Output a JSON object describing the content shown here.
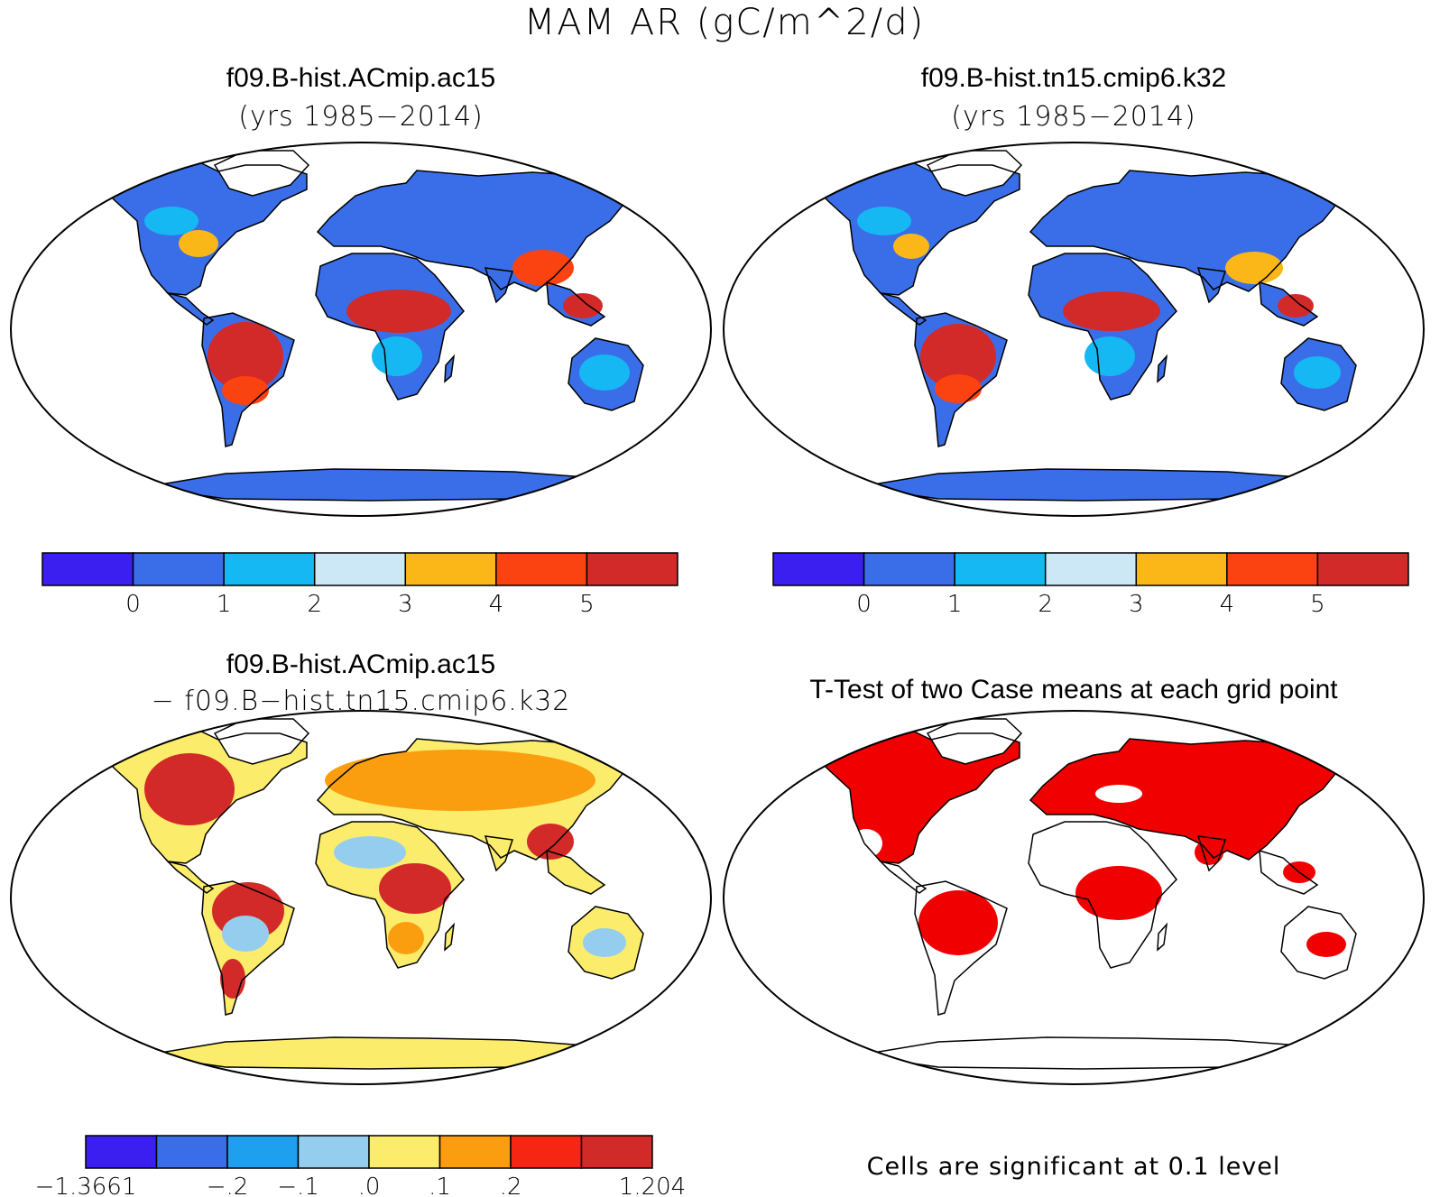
{
  "figure": {
    "title": "MAM AR (gC/m^2/d)"
  },
  "panels": [
    {
      "title": "f09.B-hist.ACmip.ac15",
      "subtitle": "(yrs 1985−2014)"
    },
    {
      "title": "f09.B-hist.tn15.cmip6.k32",
      "subtitle": "(yrs 1985−2014)"
    },
    {
      "title": "f09.B-hist.ACmip.ac15",
      "subtitle": "− f09.B−hist.tn15.cmip6.k32"
    },
    {
      "title": "T-Test of two Case means at each grid point",
      "subtitle": ""
    }
  ],
  "colorbars": {
    "absolute": {
      "colors": [
        "#3a1ff0",
        "#3a6ee8",
        "#15b8f2",
        "#cce8f7",
        "#fbb718",
        "#fb4211",
        "#d22a28"
      ],
      "labels": [
        "0",
        "1",
        "2",
        "3",
        "4",
        "5"
      ]
    },
    "difference": {
      "colors": [
        "#3a1ff0",
        "#3a6ee8",
        "#1ea0ee",
        "#95cdef",
        "#fbec6c",
        "#fa9e10",
        "#f72612",
        "#d22a28"
      ],
      "labels": [
        "−1.3661",
        "−.2",
        "−.1",
        ".0",
        ".1",
        ".2",
        "1.204"
      ]
    }
  },
  "significance_note": "Cells are significant at 0.1 level",
  "palette": {
    "land_base": "#3a6ee8",
    "land_mid": "#15b8f2",
    "land_warm": "#fbb718",
    "land_hot": "#fb4211",
    "land_max": "#d22a28",
    "diff_base": "#fbec6c",
    "diff_low": "#95cdef",
    "diff_high": "#fa9e10",
    "diff_max": "#d22a28",
    "ttest_sig": "#f00000"
  }
}
